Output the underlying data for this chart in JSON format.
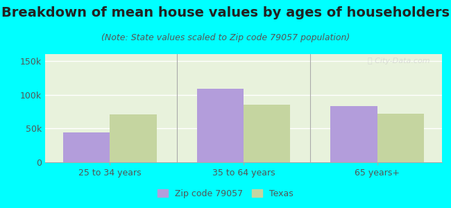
{
  "title": "Breakdown of mean house values by ages of householders",
  "subtitle": "(Note: State values scaled to Zip code 79057 population)",
  "categories": [
    "25 to 34 years",
    "35 to 64 years",
    "65 years+"
  ],
  "zip_values": [
    44000,
    109000,
    83000
  ],
  "state_values": [
    71000,
    85000,
    72000
  ],
  "zip_color": "#b39ddb",
  "state_color": "#c5d5a0",
  "ylim": [
    0,
    160000
  ],
  "yticks": [
    0,
    50000,
    100000,
    150000
  ],
  "ytick_labels": [
    "0",
    "50k",
    "100k",
    "150k"
  ],
  "background_color": "#00ffff",
  "bar_width": 0.35,
  "legend_zip_label": "Zip code 79057",
  "legend_state_label": "Texas",
  "title_fontsize": 14,
  "subtitle_fontsize": 9,
  "tick_fontsize": 9,
  "legend_fontsize": 9
}
